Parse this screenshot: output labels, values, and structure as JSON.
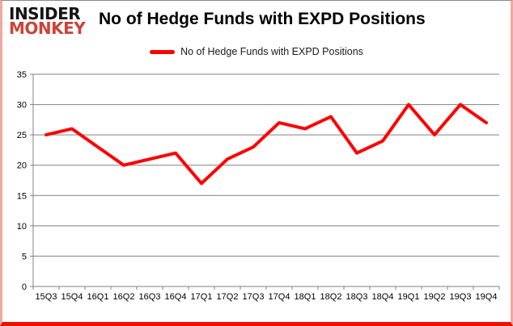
{
  "branding": {
    "logo_line1": "INSIDER",
    "logo_line2": "MONKEY",
    "logo_color_primary": "#141414",
    "logo_color_secondary": "#cb4437"
  },
  "header": {
    "title": "No of Hedge Funds with EXPD Positions"
  },
  "legend": {
    "label": "No of Hedge Funds with EXPD Positions",
    "marker_color": "#ff0000"
  },
  "chart_data": {
    "type": "line",
    "title": "No of Hedge Funds with EXPD Positions",
    "categories": [
      "15Q3",
      "15Q4",
      "16Q1",
      "16Q2",
      "16Q3",
      "16Q4",
      "17Q1",
      "17Q2",
      "17Q3",
      "17Q4",
      "18Q1",
      "18Q2",
      "18Q3",
      "18Q4",
      "19Q1",
      "19Q2",
      "19Q3",
      "19Q4"
    ],
    "series": [
      {
        "name": "No of Hedge Funds with EXPD Positions",
        "color": "#ff0000",
        "values": [
          25,
          26,
          23,
          20,
          21,
          22,
          17,
          21,
          23,
          27,
          26,
          28,
          22,
          24,
          30,
          25,
          30,
          27
        ]
      }
    ],
    "xlabel": "",
    "ylabel": "",
    "ylim": [
      0,
      35
    ],
    "yticks": [
      0,
      5,
      10,
      15,
      20,
      25,
      30,
      35
    ],
    "grid": true,
    "gridline_color": "#808080",
    "legend_position": "top"
  }
}
